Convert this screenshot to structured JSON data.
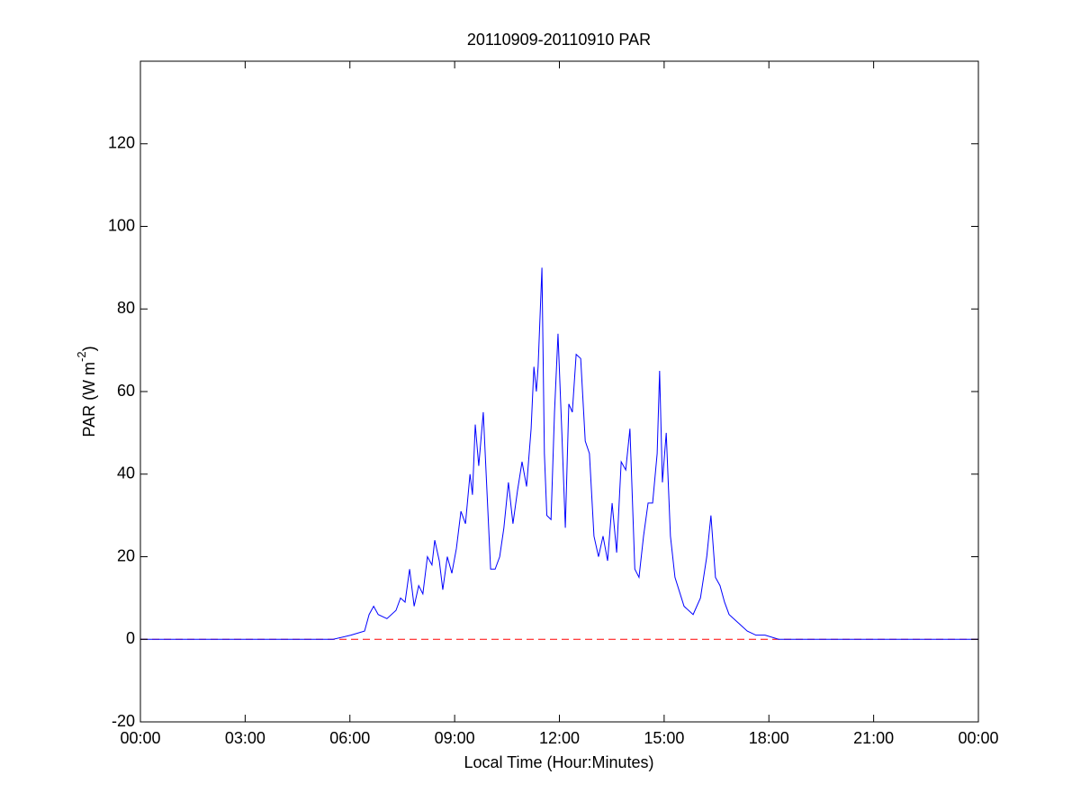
{
  "chart_data": {
    "type": "line",
    "title": "20110909-20110910 PAR",
    "xlabel": "Local Time (Hour:Minutes)",
    "ylabel": [
      "PAR (W m",
      "-2",
      ")"
    ],
    "xlim": [
      0,
      24
    ],
    "xticks": [
      {
        "value": 0,
        "label": "00:00"
      },
      {
        "value": 3,
        "label": "03:00"
      },
      {
        "value": 6,
        "label": "06:00"
      },
      {
        "value": 9,
        "label": "09:00"
      },
      {
        "value": 12,
        "label": "12:00"
      },
      {
        "value": 15,
        "label": "15:00"
      },
      {
        "value": 18,
        "label": "18:00"
      },
      {
        "value": 21,
        "label": "21:00"
      },
      {
        "value": 24,
        "label": "00:00"
      }
    ],
    "ylim": [
      -20,
      140
    ],
    "yticks": [
      -20,
      0,
      20,
      40,
      60,
      80,
      100,
      120
    ],
    "grid": false,
    "reference_line": {
      "value": 0,
      "color": "#ff0000"
    },
    "series": [
      {
        "color": "#0000ff",
        "x": [
          0,
          5.52,
          6.03,
          6.42,
          6.55,
          6.68,
          6.81,
          7.06,
          7.32,
          7.45,
          7.58,
          7.71,
          7.84,
          7.97,
          8.09,
          8.22,
          8.35,
          8.43,
          8.56,
          8.66,
          8.79,
          8.92,
          9.05,
          9.18,
          9.31,
          9.44,
          9.51,
          9.59,
          9.69,
          9.82,
          9.93,
          10.03,
          10.16,
          10.29,
          10.41,
          10.54,
          10.67,
          10.8,
          10.93,
          11.06,
          11.19,
          11.27,
          11.34,
          11.39,
          11.5,
          11.57,
          11.64,
          11.76,
          11.86,
          11.96,
          12.07,
          12.17,
          12.27,
          12.37,
          12.48,
          12.61,
          12.74,
          12.86,
          12.99,
          13.12,
          13.25,
          13.38,
          13.51,
          13.64,
          13.77,
          13.9,
          14.02,
          14.16,
          14.28,
          14.41,
          14.54,
          14.67,
          14.8,
          14.87,
          14.95,
          15.06,
          15.18,
          15.31,
          15.57,
          15.83,
          16.04,
          16.22,
          16.34,
          16.47,
          16.6,
          16.73,
          16.86,
          17.12,
          17.38,
          17.63,
          17.89,
          18.28,
          24
        ],
        "values": [
          0,
          0,
          1,
          2,
          6,
          8,
          6,
          5,
          7,
          10,
          9,
          17,
          8,
          13,
          11,
          20,
          18,
          24,
          19,
          12,
          20,
          16,
          22,
          31,
          28,
          40,
          35,
          52,
          42,
          55,
          35,
          17,
          17,
          20,
          27,
          38,
          28,
          36,
          43,
          37,
          51,
          66,
          60,
          66,
          90,
          45,
          30,
          29,
          55,
          74,
          50,
          27,
          57,
          55,
          69,
          68,
          48,
          45,
          25,
          20,
          25,
          19,
          33,
          21,
          43,
          41,
          51,
          17,
          15,
          25,
          33,
          33,
          45,
          65,
          38,
          50,
          25,
          15,
          8,
          6,
          10,
          20,
          30,
          15,
          13,
          9,
          6,
          4,
          2,
          1,
          1,
          0,
          0
        ]
      }
    ]
  }
}
